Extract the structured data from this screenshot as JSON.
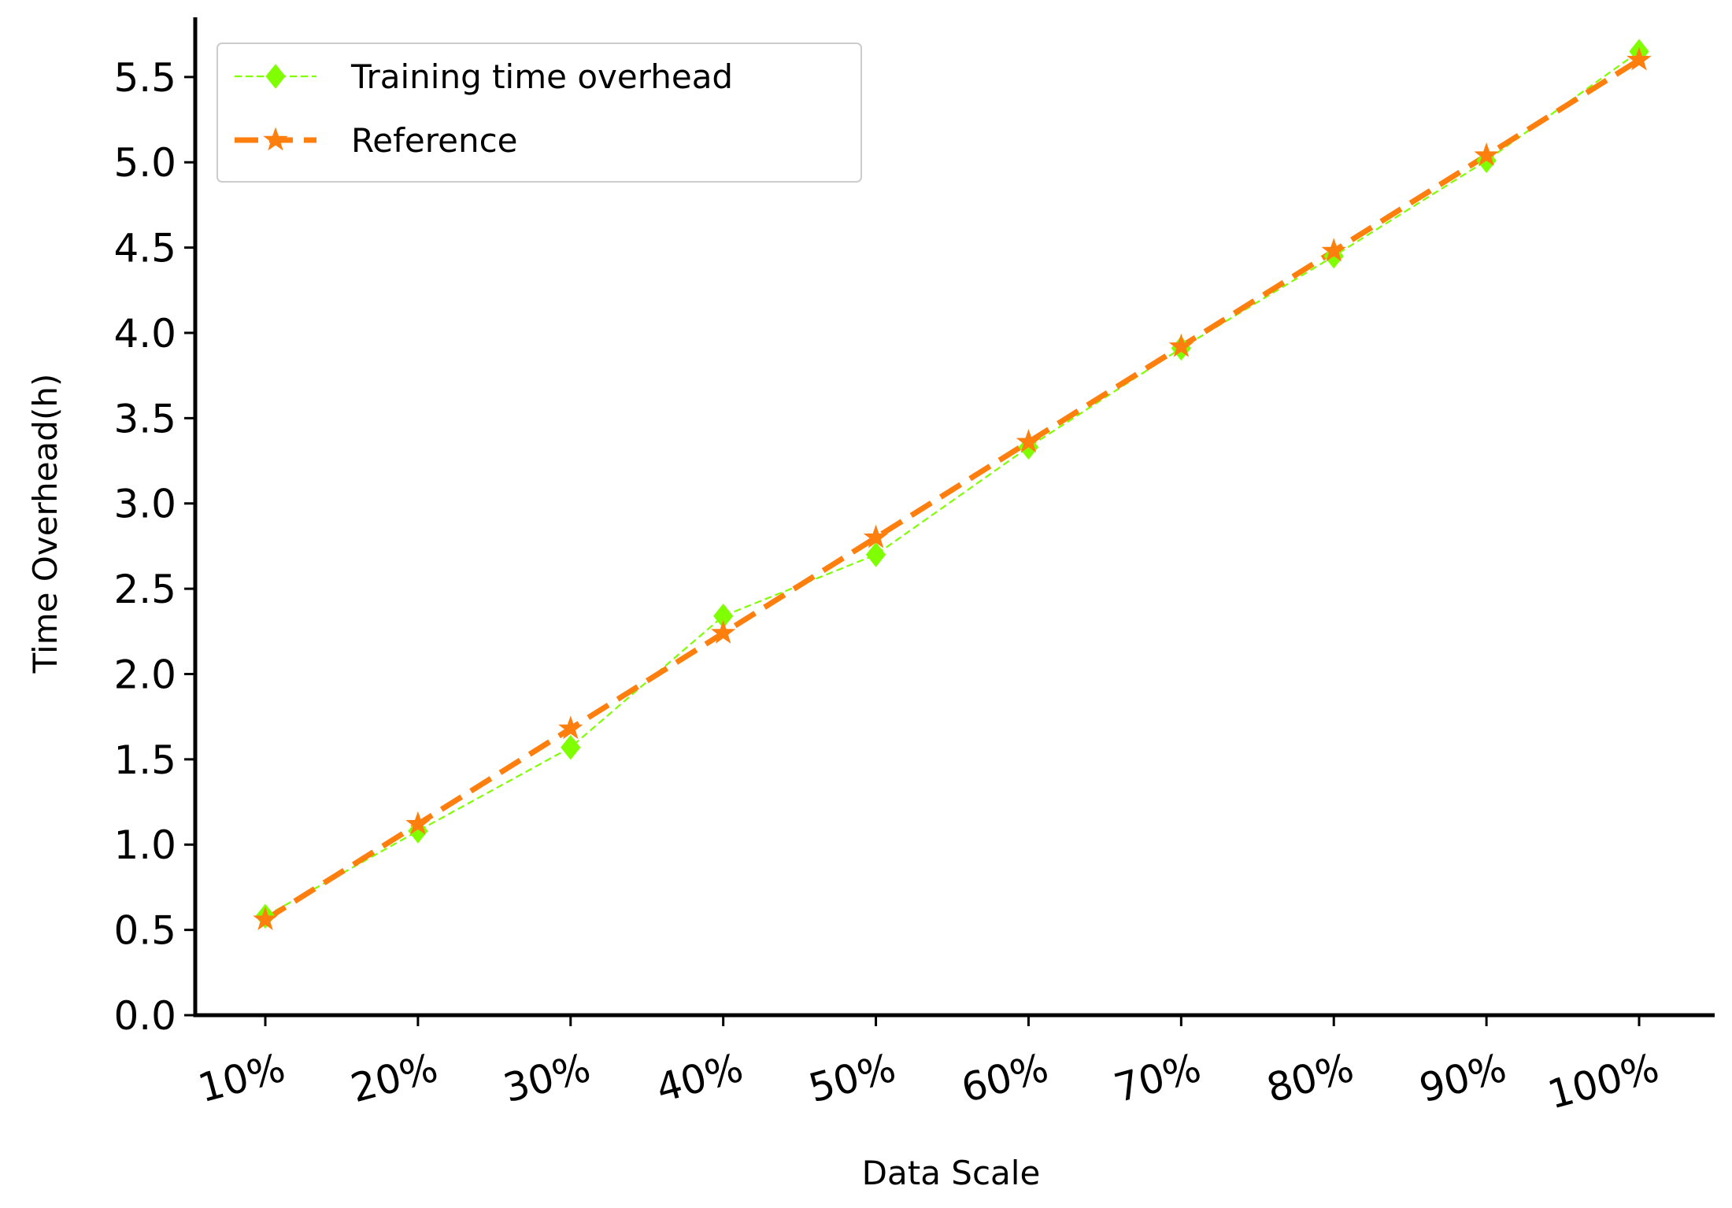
{
  "chart_data": {
    "type": "line",
    "categories": [
      "10%",
      "20%",
      "30%",
      "40%",
      "50%",
      "60%",
      "70%",
      "80%",
      "90%",
      "100%"
    ],
    "series": [
      {
        "name": "Training time overhead",
        "values": [
          0.58,
          1.08,
          1.57,
          2.34,
          2.7,
          3.33,
          3.91,
          4.45,
          5.01,
          5.65
        ],
        "color": "#7fff00",
        "line_style": "dashed-thin",
        "marker": "diamond"
      },
      {
        "name": "Reference",
        "values": [
          0.56,
          1.12,
          1.68,
          2.24,
          2.8,
          3.36,
          3.92,
          4.48,
          5.04,
          5.6
        ],
        "color": "#ff7f0e",
        "line_style": "dashed-thick",
        "marker": "star"
      }
    ],
    "title": "",
    "xlabel": "Data Scale",
    "ylabel": "Time Overhead(h)",
    "ylim": [
      0,
      5.85
    ],
    "yticks": [
      "0.0",
      "0.5",
      "1.0",
      "1.5",
      "2.0",
      "2.5",
      "3.0",
      "3.5",
      "4.0",
      "4.5",
      "5.0",
      "5.5"
    ],
    "grid": false,
    "legend_position": "top-left"
  }
}
